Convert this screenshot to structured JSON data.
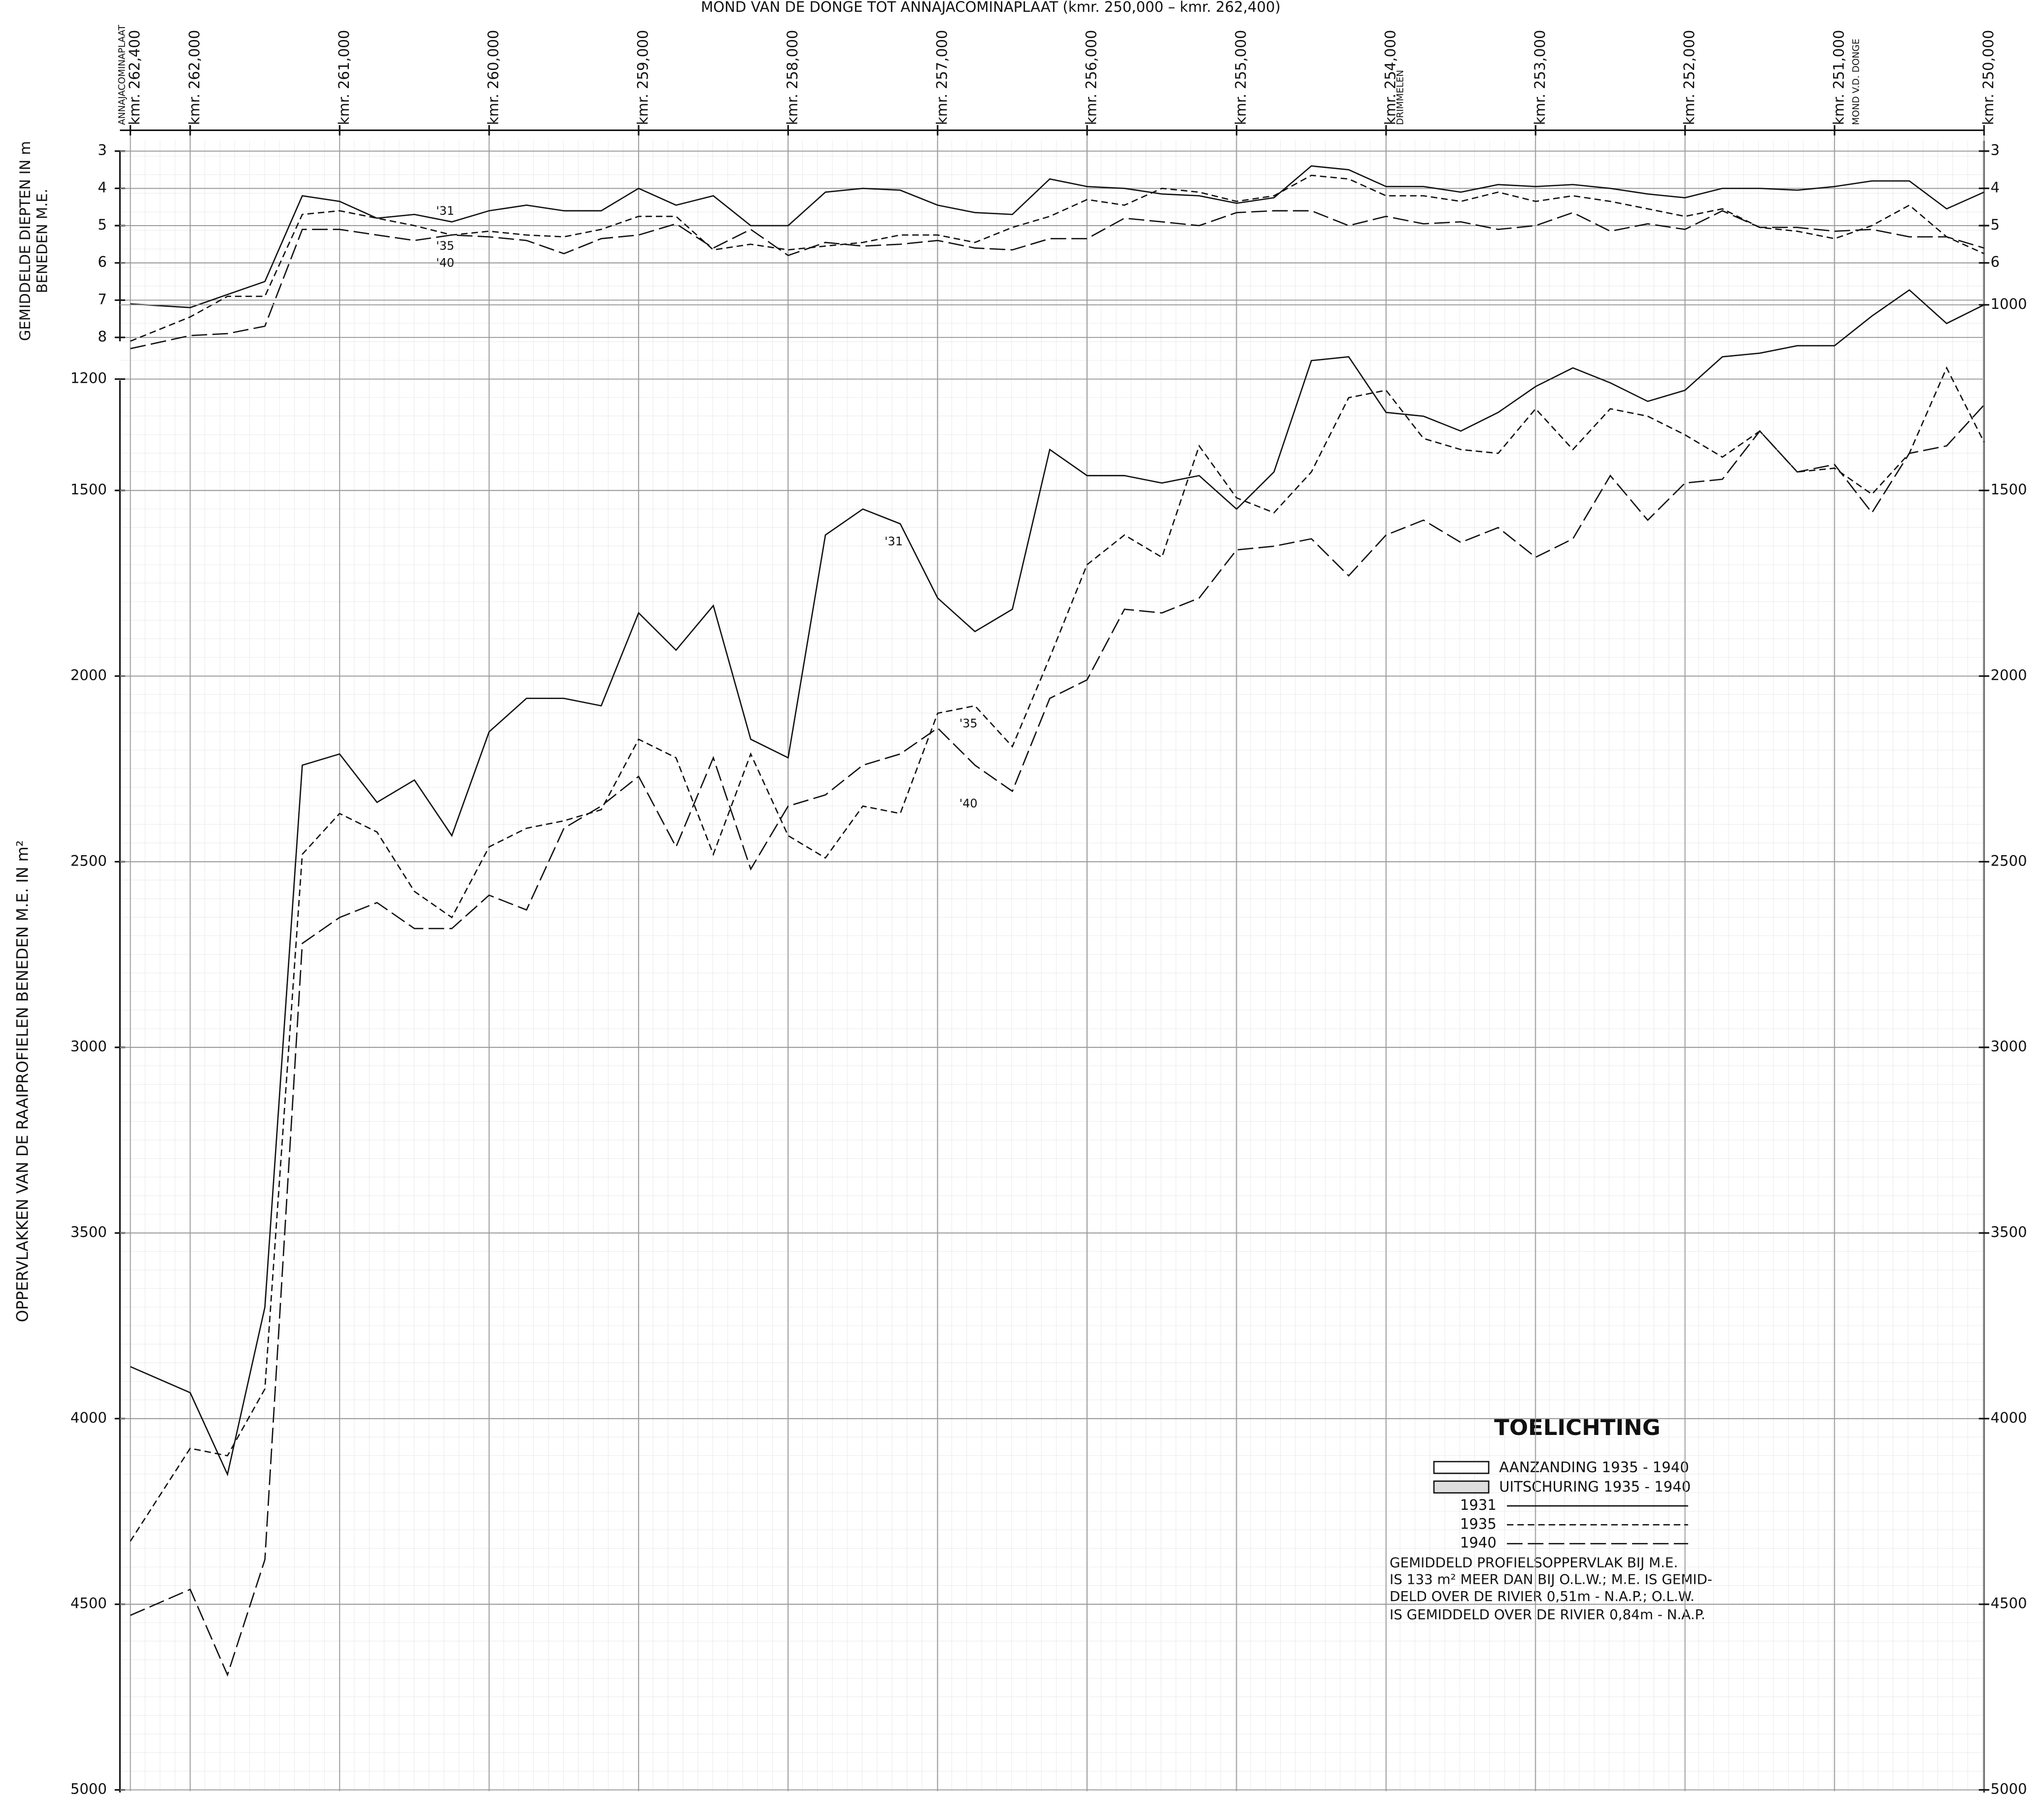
{
  "chart_data": [
    {
      "type": "line",
      "title": "MOND VAN DE DONGE TOT ANNAJACOMINAPLAAT (kmr. 250,000 – kmr. 262,400)",
      "y_label": [
        "GEMIDDELDE DIEPTEN IN m",
        "BENEDEN M.E."
      ],
      "x": [
        262.4,
        262,
        261.75,
        261.5,
        261.25,
        261,
        260.75,
        260.5,
        260.25,
        260,
        259.75,
        259.5,
        259.25,
        259,
        258.75,
        258.5,
        258.25,
        258,
        257.75,
        257.5,
        257.25,
        257,
        256.75,
        256.5,
        256.25,
        256,
        255.75,
        255.5,
        255.25,
        255,
        254.75,
        254.5,
        254.25,
        254,
        253.75,
        253.5,
        253.25,
        253,
        252.75,
        252.5,
        252.25,
        252,
        251.75,
        251.5,
        251.25,
        251,
        250.75,
        250.5,
        250.25,
        250
      ],
      "xlim": [
        262.4,
        250
      ],
      "xticks": [
        {
          "value": 262.4,
          "label": "kmr. 262,400"
        },
        {
          "value": 262,
          "label": "kmr. 262,000"
        },
        {
          "value": 261,
          "label": "kmr. 261,000"
        },
        {
          "value": 260,
          "label": "kmr. 260,000"
        },
        {
          "value": 259,
          "label": "kmr. 259,000"
        },
        {
          "value": 258,
          "label": "kmr. 258,000"
        },
        {
          "value": 257,
          "label": "kmr. 257,000"
        },
        {
          "value": 256,
          "label": "kmr. 256,000"
        },
        {
          "value": 255,
          "label": "kmr. 255,000"
        },
        {
          "value": 254,
          "label": "kmr. 254,000"
        },
        {
          "value": 253,
          "label": "kmr. 253,000"
        },
        {
          "value": 252,
          "label": "kmr. 252,000"
        },
        {
          "value": 251,
          "label": "kmr. 251,000"
        },
        {
          "value": 250,
          "label": "kmr. 250,000"
        }
      ],
      "place_labels": [
        {
          "x": 262.4,
          "text": "ANNAJACOMINAPLAAT"
        },
        {
          "x": 253.85,
          "text": "DRIMMELEN"
        },
        {
          "x": 250.8,
          "text": "MOND V.D. DONGE"
        }
      ],
      "ylim": [
        3,
        8
      ],
      "y_inverted": true,
      "yticks": [
        3,
        4,
        5,
        6,
        7,
        8
      ],
      "y2ticks": [
        3,
        4,
        5,
        6
      ],
      "grid": true,
      "series": [
        {
          "name": "1931",
          "label": "'31",
          "style": "solid",
          "color": "#111",
          "values": [
            7.1,
            7.2,
            6.85,
            6.5,
            4.2,
            4.35,
            4.8,
            4.7,
            4.9,
            4.6,
            4.45,
            4.6,
            4.6,
            4.0,
            4.45,
            4.2,
            5.0,
            5.0,
            4.1,
            4.0,
            4.05,
            4.45,
            4.65,
            4.7,
            3.75,
            3.95,
            4.0,
            4.15,
            4.2,
            4.4,
            4.25,
            3.4,
            3.5,
            3.95,
            3.95,
            4.1,
            3.9,
            3.95,
            3.9,
            4.0,
            4.15,
            4.25,
            4.0,
            4.0,
            4.05,
            3.95,
            3.8,
            3.8,
            4.55,
            4.1
          ]
        },
        {
          "name": "1935",
          "label": "'35",
          "style": "dashed",
          "color": "#111",
          "values": [
            8.1,
            7.45,
            6.9,
            6.9,
            4.7,
            4.6,
            4.8,
            5.0,
            5.25,
            5.15,
            5.25,
            5.3,
            5.1,
            4.75,
            4.75,
            5.65,
            5.5,
            5.65,
            5.55,
            5.45,
            5.25,
            5.25,
            5.45,
            5.05,
            4.75,
            4.3,
            4.45,
            4.0,
            4.1,
            4.35,
            4.2,
            3.65,
            3.75,
            4.2,
            4.2,
            4.35,
            4.1,
            4.35,
            4.2,
            4.35,
            4.55,
            4.75,
            4.55,
            5.05,
            5.15,
            5.35,
            5.0,
            4.45,
            5.3,
            5.75
          ]
        },
        {
          "name": "1940",
          "label": "'40",
          "style": "long-dash",
          "color": "#111",
          "values": [
            8.3,
            7.95,
            7.9,
            7.7,
            5.1,
            5.1,
            5.25,
            5.4,
            5.25,
            5.3,
            5.4,
            5.75,
            5.35,
            5.25,
            4.95,
            5.6,
            5.1,
            5.8,
            5.45,
            5.55,
            5.5,
            5.4,
            5.6,
            5.65,
            5.35,
            5.35,
            4.8,
            4.9,
            5.0,
            4.65,
            4.6,
            4.6,
            5.0,
            4.75,
            4.95,
            4.9,
            5.1,
            5.0,
            4.65,
            5.15,
            4.95,
            5.1,
            4.6,
            5.05,
            5.05,
            5.15,
            5.1,
            5.3,
            5.3,
            5.6
          ]
        }
      ]
    },
    {
      "type": "line",
      "y_label": "OPPERVLAKKEN VAN DE RAAIPROFIELEN BENEDEN M.E. IN m²",
      "x": [
        262.4,
        262,
        261.75,
        261.5,
        261.25,
        261,
        260.75,
        260.5,
        260.25,
        260,
        259.75,
        259.5,
        259.25,
        259,
        258.75,
        258.5,
        258.25,
        258,
        257.75,
        257.5,
        257.25,
        257,
        256.75,
        256.5,
        256.25,
        256,
        255.75,
        255.5,
        255.25,
        255,
        254.75,
        254.5,
        254.25,
        254,
        253.75,
        253.5,
        253.25,
        253,
        252.75,
        252.5,
        252.25,
        252,
        251.75,
        251.5,
        251.25,
        251,
        250.75,
        250.5,
        250.25,
        250
      ],
      "xlim": [
        262.4,
        250
      ],
      "ylim": [
        1000,
        5000
      ],
      "y_inverted": true,
      "yticks": [
        1200,
        1500,
        2000,
        2500,
        3000,
        3500,
        4000,
        4500,
        5000
      ],
      "y2ticks": [
        1000,
        1500,
        2000,
        2500,
        3000,
        3500,
        4000,
        4500,
        5000
      ],
      "grid": true,
      "series": [
        {
          "name": "1931",
          "label": "'31",
          "style": "solid",
          "color": "#111",
          "values": [
            3860,
            3930,
            4150,
            3700,
            2240,
            2210,
            2340,
            2280,
            2430,
            2150,
            2060,
            2060,
            2080,
            1830,
            1930,
            1810,
            2170,
            2220,
            1620,
            1550,
            1590,
            1790,
            1880,
            1820,
            1390,
            1460,
            1460,
            1480,
            1460,
            1550,
            1450,
            1150,
            1140,
            1290,
            1300,
            1340,
            1290,
            1220,
            1170,
            1210,
            1260,
            1230,
            1140,
            1130,
            1110,
            1110,
            1030,
            960,
            1050,
            1000
          ]
        },
        {
          "name": "1935",
          "label": "'35",
          "style": "dashed",
          "color": "#111",
          "values": [
            4330,
            4080,
            4100,
            3920,
            2480,
            2370,
            2420,
            2580,
            2650,
            2460,
            2410,
            2390,
            2360,
            2170,
            2220,
            2480,
            2210,
            2430,
            2490,
            2350,
            2370,
            2100,
            2080,
            2190,
            1950,
            1700,
            1620,
            1680,
            1380,
            1520,
            1560,
            1450,
            1250,
            1230,
            1360,
            1390,
            1400,
            1280,
            1390,
            1280,
            1300,
            1350,
            1410,
            1340,
            1450,
            1440,
            1510,
            1400,
            1170,
            1370
          ]
        },
        {
          "name": "1940",
          "label": "'40",
          "style": "long-dash",
          "color": "#111",
          "values": [
            4530,
            4460,
            4690,
            4380,
            2720,
            2650,
            2610,
            2680,
            2680,
            2590,
            2630,
            2410,
            2350,
            2270,
            2460,
            2220,
            2520,
            2350,
            2320,
            2240,
            2210,
            2140,
            2240,
            2310,
            2060,
            2010,
            1820,
            1830,
            1790,
            1660,
            1650,
            1630,
            1730,
            1620,
            1580,
            1640,
            1600,
            1680,
            1630,
            1460,
            1580,
            1480,
            1470,
            1340,
            1450,
            1430,
            1560,
            1400,
            1380,
            1270
          ]
        }
      ],
      "legend_title": "TOELICHTING",
      "legend_fills": [
        "AANZANDING 1935 - 1940",
        "UITSCHURING 1935 - 1940"
      ],
      "note": [
        "GEMIDDELD PROFIELSOPPERVLAK BIJ M.E.",
        "IS 133 m² MEER DAN BIJ O.L.W.; M.E. IS GEMID-",
        "DELD OVER DE RIVIER 0,51m - N.A.P.; O.L.W.",
        "IS GEMIDDELD OVER DE RIVIER 0,84m - N.A.P."
      ]
    }
  ]
}
